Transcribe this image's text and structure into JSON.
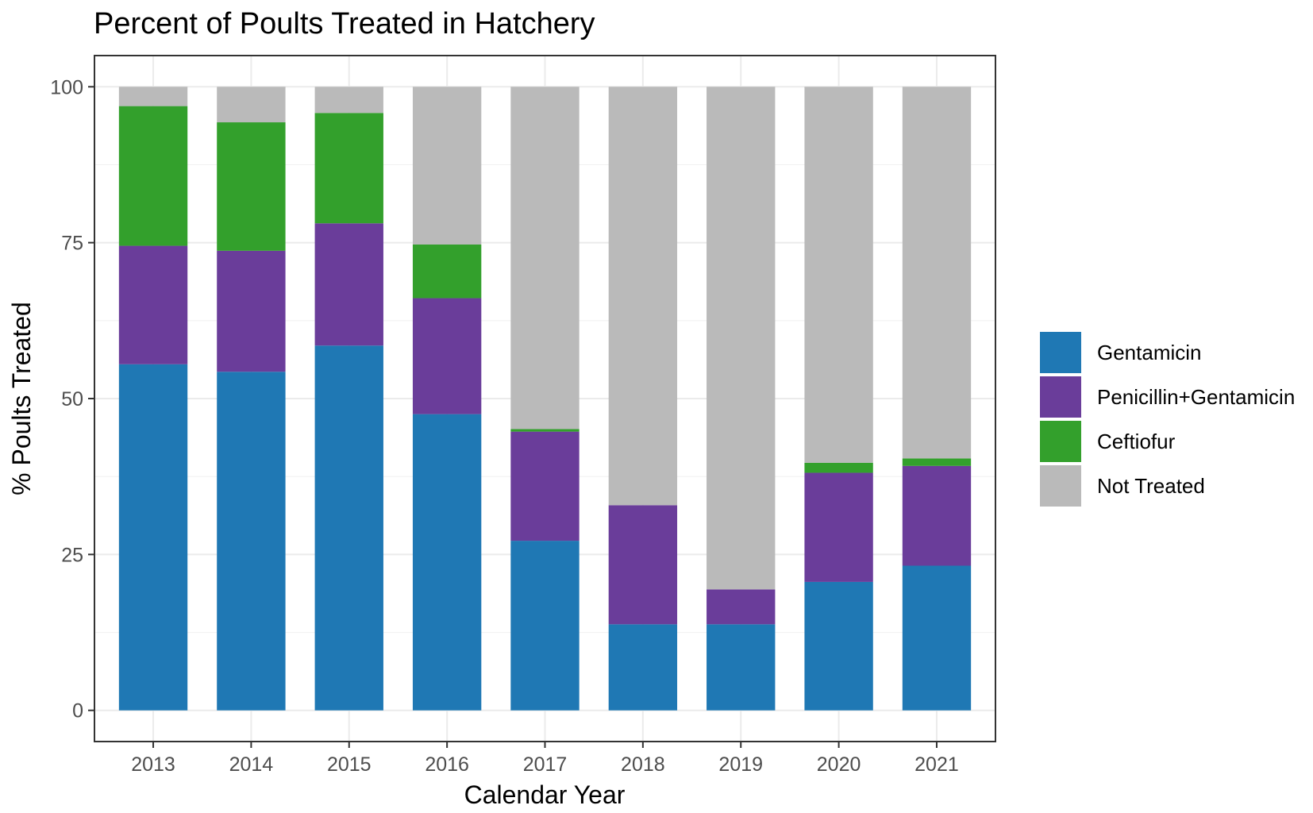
{
  "chart_data": {
    "type": "bar",
    "stacked": true,
    "title": "Percent of Poults Treated in Hatchery",
    "xlabel": "Calendar Year",
    "ylabel": "% Poults Treated",
    "categories": [
      "2013",
      "2014",
      "2015",
      "2016",
      "2017",
      "2018",
      "2019",
      "2020",
      "2021"
    ],
    "ylim": [
      -5,
      105
    ],
    "yticks": [
      0,
      25,
      50,
      75,
      100
    ],
    "grid": true,
    "legend_position": "right",
    "series": [
      {
        "name": "Gentamicin",
        "color": "#1f78b4",
        "values": [
          55.5,
          54.3,
          58.5,
          47.5,
          27.2,
          13.8,
          13.8,
          20.6,
          23.2
        ]
      },
      {
        "name": "Penicillin+Gentamicin",
        "color": "#6a3d9a",
        "values": [
          19.0,
          19.4,
          19.6,
          18.6,
          17.5,
          19.1,
          5.6,
          17.5,
          16.0
        ]
      },
      {
        "name": "Ceftiofur",
        "color": "#33a02c",
        "values": [
          22.4,
          20.6,
          17.7,
          8.6,
          0.4,
          0.0,
          0.0,
          1.6,
          1.2
        ]
      },
      {
        "name": "Not Treated",
        "color": "#bababa",
        "values": [
          3.1,
          5.7,
          4.2,
          25.3,
          54.9,
          67.1,
          80.6,
          60.3,
          59.6
        ]
      }
    ]
  }
}
